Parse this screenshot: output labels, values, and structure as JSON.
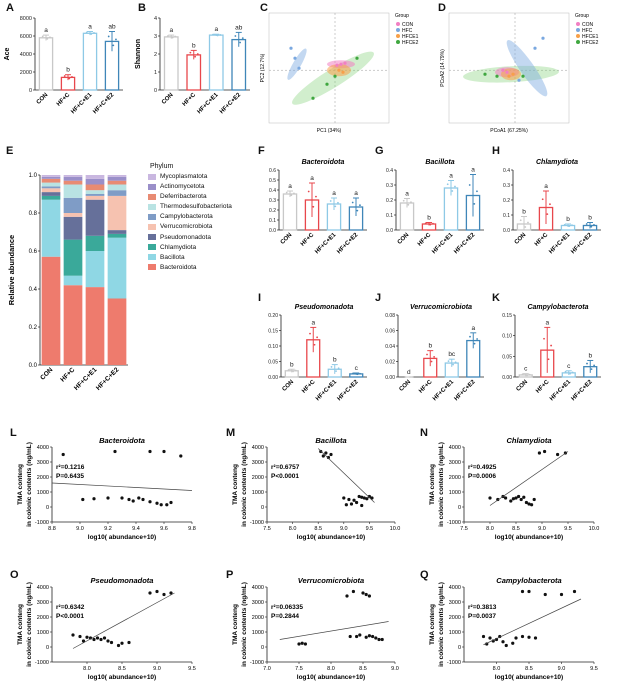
{
  "panels": {
    "A": {
      "label": "A",
      "ylabel": "Ace",
      "yticks": [
        "0",
        "2000",
        "4000",
        "6000",
        "8000"
      ],
      "ylim": [
        0,
        8000
      ]
    },
    "B": {
      "label": "B",
      "ylabel": "Shannon",
      "yticks": [
        "0",
        "1",
        "2",
        "3",
        "4"
      ],
      "ylim": [
        0,
        4
      ]
    },
    "C": {
      "label": "C",
      "xlabel": "PC1 (34%)",
      "ylabel": "PC2 (12.7%)",
      "legend_title": "Group",
      "legend": [
        "CON",
        "HFC",
        "HFCE1",
        "HFCE2"
      ]
    },
    "D": {
      "label": "D",
      "xlabel": "PCoA1 (67.25%)",
      "ylabel": "PCoA2 (14.79%)",
      "legend_title": "Group",
      "legend": [
        "CON",
        "HFC",
        "HFCE1",
        "HFCE2"
      ]
    },
    "E": {
      "label": "E",
      "ylabel": "Relative abundance",
      "legend_title": "Phylum",
      "yticks": [
        "0.0",
        "0.2",
        "0.4",
        "0.6",
        "0.8",
        "1.0"
      ]
    },
    "F": {
      "label": "F",
      "title": "Bacteroidota",
      "yticks": [
        "0.0",
        "0.1",
        "0.2",
        "0.3",
        "0.4",
        "0.5",
        "0.6"
      ]
    },
    "G": {
      "label": "G",
      "title": "Bacillota",
      "yticks": [
        "0.0",
        "0.1",
        "0.2",
        "0.3",
        "0.4"
      ]
    },
    "H": {
      "label": "H",
      "title": "Chlamydiota",
      "yticks": [
        "0.0",
        "0.1",
        "0.2",
        "0.3",
        "0.4"
      ]
    },
    "I": {
      "label": "I",
      "title": "Pseudomonadota",
      "yticks": [
        "0.00",
        "0.05",
        "0.10",
        "0.15",
        "0.20"
      ]
    },
    "J": {
      "label": "J",
      "title": "Verrucomicrobiota",
      "yticks": [
        "0.00",
        "0.02",
        "0.04",
        "0.06",
        "0.08"
      ]
    },
    "K": {
      "label": "K",
      "title": "Campylobacterota",
      "yticks": [
        "0.00",
        "0.05",
        "0.10",
        "0.15"
      ]
    },
    "L": {
      "label": "L",
      "title": "Bacteroidota",
      "stats": [
        "r²=0.1216",
        "P=0.6435"
      ]
    },
    "M": {
      "label": "M",
      "title": "Bacillota",
      "stats": [
        "r²=0.6757",
        "P<0.0001"
      ]
    },
    "N": {
      "label": "N",
      "title": "Chlamydiota",
      "stats": [
        "r²=0.4925",
        "P=0.0006"
      ]
    },
    "O": {
      "label": "O",
      "title": "Pseudomonadota",
      "stats": [
        "r²=0.6342",
        "P<0.0001"
      ]
    },
    "P": {
      "label": "P",
      "title": "Verrucomicrobiota",
      "stats": [
        "r²=0.06335",
        "P=0.2844"
      ]
    },
    "Q": {
      "label": "Q",
      "title": "Campylobacterota",
      "stats": [
        "r²=0.3813",
        "P=0.0037"
      ]
    }
  },
  "group_labels": [
    "CON",
    "HF+C",
    "HF+C+E1",
    "HF+C+E2"
  ],
  "group_colors": [
    "#c8c8c8",
    "#e8474c",
    "#8ec9e6",
    "#3f86b8"
  ],
  "scatter_ylabel_1": "TMA conteng",
  "scatter_ylabel_2": "in colonic contents (ng/mL)",
  "scatter_xlabel": "log10( abundance+10)",
  "scatter_yticks": [
    "-1000",
    "0",
    "1000",
    "2000",
    "3000",
    "4000"
  ],
  "phylum_legend": [
    {
      "name": "Mycoplasmatota",
      "color": "#c9b7e0"
    },
    {
      "name": "Actinomycetota",
      "color": "#9a8fc9"
    },
    {
      "name": "Deferribacterota",
      "color": "#e88b73"
    },
    {
      "name": "Thermodesulfobacteriota",
      "color": "#b9e3e3"
    },
    {
      "name": "Campylobacterota",
      "color": "#7f9cc6"
    },
    {
      "name": "Verrucomicrobiota",
      "color": "#f6c2b0"
    },
    {
      "name": "Pseudomonadota",
      "color": "#66709a"
    },
    {
      "name": "Chlamydiota",
      "color": "#3aa99a"
    },
    {
      "name": "Bacillota",
      "color": "#8fd7e4"
    },
    {
      "name": "Bacteroidota",
      "color": "#ee7b6d"
    }
  ],
  "chart_data": [
    {
      "panel": "A",
      "type": "bar",
      "categories": [
        "CON",
        "HF+C",
        "HF+C+E1",
        "HF+C+E2"
      ],
      "values": [
        5800,
        1400,
        6300,
        5400
      ],
      "errors": [
        300,
        300,
        200,
        1100
      ],
      "letters": [
        "a",
        "b",
        "a",
        "ab"
      ],
      "ylim": [
        0,
        8000
      ],
      "ylabel": "Ace"
    },
    {
      "panel": "B",
      "type": "bar",
      "categories": [
        "CON",
        "HF+C",
        "HF+C+E1",
        "HF+C+E2"
      ],
      "values": [
        2.95,
        1.95,
        3.05,
        2.8
      ],
      "errors": [
        0.1,
        0.25,
        0.05,
        0.4
      ],
      "letters": [
        "a",
        "b",
        "a",
        "ab"
      ],
      "ylim": [
        0,
        4
      ],
      "ylabel": "Shannon"
    },
    {
      "panel": "E",
      "type": "bar",
      "stacked": true,
      "categories": [
        "CON",
        "HF+C",
        "HF+C+E1",
        "HF+C+E2"
      ],
      "series": [
        {
          "name": "Bacteroidota",
          "values": [
            0.57,
            0.42,
            0.41,
            0.35
          ]
        },
        {
          "name": "Bacillota",
          "values": [
            0.3,
            0.05,
            0.19,
            0.32
          ]
        },
        {
          "name": "Chlamydiota",
          "values": [
            0.02,
            0.19,
            0.08,
            0.02
          ]
        },
        {
          "name": "Pseudomonadota",
          "values": [
            0.02,
            0.12,
            0.19,
            0.02
          ]
        },
        {
          "name": "Verrucomicrobiota",
          "values": [
            0.02,
            0.02,
            0.02,
            0.18
          ]
        },
        {
          "name": "Campylobacterota",
          "values": [
            0.01,
            0.08,
            0.01,
            0.03
          ]
        },
        {
          "name": "Thermodesulfobacteriota",
          "values": [
            0.02,
            0.07,
            0.02,
            0.03
          ]
        },
        {
          "name": "Deferribacterota",
          "values": [
            0.02,
            0.02,
            0.03,
            0.02
          ]
        },
        {
          "name": "Actinomycetota",
          "values": [
            0.01,
            0.02,
            0.03,
            0.02
          ]
        },
        {
          "name": "Mycoplasmatota",
          "values": [
            0.01,
            0.01,
            0.02,
            0.01
          ]
        }
      ],
      "ylim": [
        0,
        1
      ],
      "ylabel": "Relative abundance"
    },
    {
      "panel": "F",
      "type": "bar",
      "title": "Bacteroidota",
      "categories": [
        "CON",
        "HF+C",
        "HF+C+E1",
        "HF+C+E2"
      ],
      "values": [
        0.36,
        0.3,
        0.26,
        0.23
      ],
      "errors": [
        0.03,
        0.17,
        0.06,
        0.09
      ],
      "letters": [
        "a",
        "a",
        "a",
        "a"
      ],
      "ylim": [
        0,
        0.6
      ]
    },
    {
      "panel": "G",
      "type": "bar",
      "title": "Bacillota",
      "categories": [
        "CON",
        "HF+C",
        "HF+C+E1",
        "HF+C+E2"
      ],
      "values": [
        0.18,
        0.04,
        0.28,
        0.23
      ],
      "errors": [
        0.03,
        0.01,
        0.05,
        0.14
      ],
      "letters": [
        "a",
        "b",
        "a",
        "a"
      ],
      "ylim": [
        0,
        0.4
      ]
    },
    {
      "panel": "H",
      "type": "bar",
      "title": "Chlamydiota",
      "categories": [
        "CON",
        "HF+C",
        "HF+C+E1",
        "HF+C+E2"
      ],
      "values": [
        0.04,
        0.15,
        0.03,
        0.03
      ],
      "errors": [
        0.05,
        0.11,
        0.01,
        0.02
      ],
      "letters": [
        "b",
        "a",
        "b",
        "b"
      ],
      "ylim": [
        0,
        0.4
      ]
    },
    {
      "panel": "I",
      "type": "bar",
      "title": "Pseudomonadota",
      "categories": [
        "CON",
        "HF+C",
        "HF+C+E1",
        "HF+C+E2"
      ],
      "values": [
        0.02,
        0.12,
        0.025,
        0.01
      ],
      "errors": [
        0.005,
        0.04,
        0.015,
        0.003
      ],
      "letters": [
        "b",
        "a",
        "b",
        "c"
      ],
      "ylim": [
        0,
        0.2
      ]
    },
    {
      "panel": "J",
      "type": "bar",
      "title": "Verrucomicrobiota",
      "categories": [
        "CON",
        "HF+C",
        "HF+C+E1",
        "HF+C+E2"
      ],
      "values": [
        0.0,
        0.024,
        0.018,
        0.047
      ],
      "errors": [
        0.0,
        0.01,
        0.005,
        0.01
      ],
      "letters": [
        "d",
        "b",
        "bc",
        "a"
      ],
      "ylim": [
        0,
        0.08
      ]
    },
    {
      "panel": "K",
      "type": "bar",
      "title": "Campylobacterota",
      "categories": [
        "CON",
        "HF+C",
        "HF+C+E1",
        "HF+C+E2"
      ],
      "values": [
        0.005,
        0.065,
        0.01,
        0.025
      ],
      "errors": [
        0.003,
        0.055,
        0.005,
        0.015
      ],
      "letters": [
        "c",
        "a",
        "c",
        "b"
      ],
      "ylim": [
        0,
        0.15
      ]
    },
    {
      "panel": "L",
      "type": "scatter",
      "title": "Bacteroidota",
      "xlim": [
        8.8,
        9.8
      ],
      "ylim": [
        -1000,
        4000
      ],
      "xticks": [
        8.8,
        9.0,
        9.2,
        9.4,
        9.6,
        9.8
      ],
      "points": [
        [
          8.88,
          3500
        ],
        [
          9.25,
          3700
        ],
        [
          9.5,
          3700
        ],
        [
          9.6,
          3700
        ],
        [
          9.72,
          3400
        ],
        [
          9.02,
          500
        ],
        [
          9.2,
          600
        ],
        [
          9.3,
          600
        ],
        [
          9.35,
          500
        ],
        [
          9.38,
          400
        ],
        [
          9.45,
          500
        ],
        [
          9.5,
          350
        ],
        [
          9.55,
          250
        ],
        [
          9.58,
          150
        ],
        [
          9.62,
          150
        ],
        [
          9.65,
          300
        ],
        [
          9.1,
          550
        ],
        [
          9.42,
          600
        ]
      ],
      "fit": [
        [
          8.8,
          1600
        ],
        [
          9.8,
          1100
        ]
      ]
    },
    {
      "panel": "M",
      "type": "scatter",
      "title": "Bacillota",
      "xlim": [
        7.5,
        10.0
      ],
      "ylim": [
        -1000,
        4000
      ],
      "xticks": [
        7.5,
        8.0,
        8.5,
        9.0,
        9.5,
        10.0
      ],
      "points": [
        [
          8.55,
          3700
        ],
        [
          8.65,
          3600
        ],
        [
          8.75,
          3500
        ],
        [
          8.7,
          3300
        ],
        [
          8.6,
          3400
        ],
        [
          9.0,
          600
        ],
        [
          9.1,
          500
        ],
        [
          9.2,
          450
        ],
        [
          9.3,
          700
        ],
        [
          9.35,
          650
        ],
        [
          9.4,
          600
        ],
        [
          9.45,
          550
        ],
        [
          9.5,
          700
        ],
        [
          9.55,
          600
        ],
        [
          9.25,
          300
        ],
        [
          9.15,
          200
        ],
        [
          9.05,
          150
        ],
        [
          9.35,
          100
        ]
      ],
      "fit": [
        [
          8.5,
          3900
        ],
        [
          9.6,
          300
        ]
      ]
    },
    {
      "panel": "N",
      "type": "scatter",
      "title": "Chlamydiota",
      "xlim": [
        7.5,
        10.0
      ],
      "ylim": [
        -1000,
        4000
      ],
      "xticks": [
        7.5,
        8.0,
        8.5,
        9.0,
        9.5,
        10.0
      ],
      "points": [
        [
          8.0,
          600
        ],
        [
          8.15,
          500
        ],
        [
          8.25,
          700
        ],
        [
          8.3,
          600
        ],
        [
          8.4,
          400
        ],
        [
          8.45,
          550
        ],
        [
          8.5,
          600
        ],
        [
          8.55,
          700
        ],
        [
          8.6,
          500
        ],
        [
          8.65,
          650
        ],
        [
          8.7,
          300
        ],
        [
          8.75,
          200
        ],
        [
          8.8,
          150
        ],
        [
          8.85,
          500
        ],
        [
          8.95,
          3600
        ],
        [
          9.05,
          3700
        ],
        [
          9.3,
          3500
        ],
        [
          9.45,
          3600
        ]
      ],
      "fit": [
        [
          8.0,
          100
        ],
        [
          9.5,
          3700
        ]
      ]
    },
    {
      "panel": "O",
      "type": "scatter",
      "title": "Pseudomonadota",
      "xlim": [
        7.5,
        9.5
      ],
      "ylim": [
        -1000,
        4000
      ],
      "xticks": [
        8.0,
        8.5,
        9.0,
        9.5
      ],
      "points": [
        [
          7.8,
          800
        ],
        [
          7.9,
          700
        ],
        [
          8.0,
          650
        ],
        [
          8.05,
          600
        ],
        [
          8.1,
          500
        ],
        [
          8.2,
          500
        ],
        [
          8.3,
          400
        ],
        [
          8.35,
          300
        ],
        [
          8.45,
          100
        ],
        [
          8.5,
          250
        ],
        [
          8.6,
          300
        ],
        [
          8.9,
          3600
        ],
        [
          9.0,
          3700
        ],
        [
          9.1,
          3500
        ],
        [
          9.2,
          3600
        ],
        [
          7.95,
          400
        ],
        [
          8.15,
          600
        ],
        [
          8.25,
          600
        ]
      ],
      "fit": [
        [
          7.8,
          -100
        ],
        [
          9.25,
          3600
        ]
      ]
    },
    {
      "panel": "P",
      "type": "scatter",
      "title": "Verrucomicrobiota",
      "xlim": [
        7.0,
        9.0
      ],
      "ylim": [
        -1000,
        4000
      ],
      "xticks": [
        7.0,
        7.5,
        8.0,
        8.5,
        9.0
      ],
      "points": [
        [
          7.5,
          200
        ],
        [
          7.55,
          250
        ],
        [
          7.6,
          200
        ],
        [
          8.25,
          3400
        ],
        [
          8.35,
          3700
        ],
        [
          8.5,
          3600
        ],
        [
          8.55,
          3500
        ],
        [
          8.6,
          3400
        ],
        [
          8.3,
          700
        ],
        [
          8.4,
          700
        ],
        [
          8.45,
          800
        ],
        [
          8.55,
          650
        ],
        [
          8.6,
          750
        ],
        [
          8.65,
          700
        ],
        [
          8.7,
          600
        ],
        [
          8.75,
          500
        ],
        [
          8.8,
          500
        ]
      ],
      "fit": [
        [
          7.2,
          500
        ],
        [
          8.9,
          1700
        ]
      ]
    },
    {
      "panel": "Q",
      "type": "scatter",
      "title": "Campylobacterota",
      "xlim": [
        7.5,
        9.5
      ],
      "ylim": [
        -1000,
        4000
      ],
      "xticks": [
        8.0,
        8.5,
        9.0,
        9.5
      ],
      "points": [
        [
          7.8,
          700
        ],
        [
          7.9,
          600
        ],
        [
          7.95,
          400
        ],
        [
          8.0,
          500
        ],
        [
          8.05,
          700
        ],
        [
          8.1,
          350
        ],
        [
          8.15,
          100
        ],
        [
          8.25,
          250
        ],
        [
          8.3,
          600
        ],
        [
          8.4,
          700
        ],
        [
          8.5,
          650
        ],
        [
          8.6,
          600
        ],
        [
          8.4,
          3700
        ],
        [
          8.5,
          3700
        ],
        [
          8.75,
          3500
        ],
        [
          9.0,
          3500
        ],
        [
          9.2,
          3700
        ],
        [
          7.85,
          200
        ]
      ],
      "fit": [
        [
          7.8,
          150
        ],
        [
          9.3,
          3200
        ]
      ]
    }
  ]
}
